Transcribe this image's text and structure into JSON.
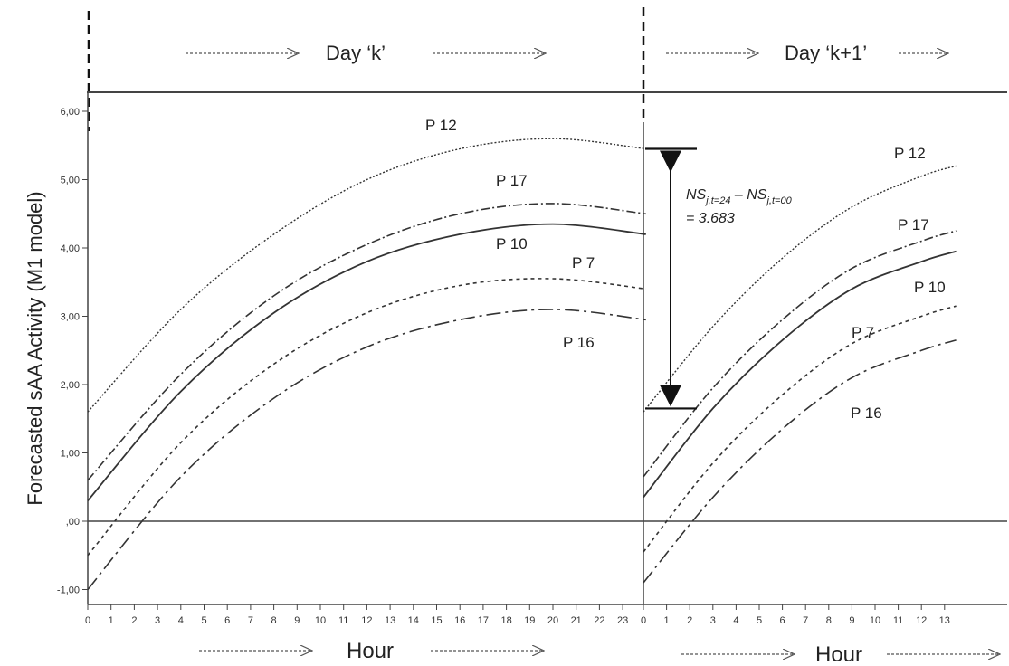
{
  "chart_data": {
    "type": "line",
    "title": "",
    "ylabel": "Forecasted sAA Activity (M1 model)",
    "ylim": [
      -1.2,
      6.2
    ],
    "y_ticks": [
      "6,00",
      "5,00",
      "4,00",
      "3,00",
      "2,00",
      "1,00",
      ",00",
      "-1,00"
    ],
    "grid": false,
    "panels": [
      {
        "name": "Day ‘k’",
        "xlabel": "Hour",
        "xlim": [
          0,
          24
        ],
        "x_ticks": [
          "0",
          "1",
          "2",
          "3",
          "4",
          "5",
          "6",
          "7",
          "8",
          "9",
          "10",
          "11",
          "12",
          "13",
          "14",
          "15",
          "16",
          "17",
          "18",
          "19",
          "20",
          "21",
          "22",
          "23"
        ],
        "series": [
          {
            "name": "P 12",
            "style": "dotted",
            "x": [
              0,
              4,
              8,
              12,
              16,
              20,
              24
            ],
            "y": [
              1.6,
              3.1,
              4.2,
              5.0,
              5.45,
              5.6,
              5.45
            ]
          },
          {
            "name": "P 17",
            "style": "dashdot",
            "x": [
              0,
              4,
              8,
              12,
              16,
              20,
              24
            ],
            "y": [
              0.6,
              2.15,
              3.3,
              4.05,
              4.5,
              4.65,
              4.5
            ]
          },
          {
            "name": "P 10",
            "style": "solid",
            "x": [
              0,
              4,
              8,
              12,
              16,
              20,
              24
            ],
            "y": [
              0.3,
              1.9,
              3.05,
              3.8,
              4.2,
              4.35,
              4.2
            ]
          },
          {
            "name": "P 7",
            "style": "dashed-short",
            "x": [
              0,
              4,
              8,
              12,
              16,
              20,
              24
            ],
            "y": [
              -0.5,
              1.15,
              2.3,
              3.05,
              3.45,
              3.55,
              3.4
            ]
          },
          {
            "name": "P 16",
            "style": "dashed-long",
            "x": [
              0,
              4,
              8,
              12,
              16,
              20,
              24
            ],
            "y": [
              -1.0,
              0.65,
              1.8,
              2.55,
              2.95,
              3.1,
              2.95
            ]
          }
        ]
      },
      {
        "name": "Day ‘k+1’",
        "xlabel": "Hour",
        "xlim": [
          0,
          13.5
        ],
        "x_ticks": [
          "0",
          "1",
          "2",
          "3",
          "4",
          "5",
          "6",
          "7",
          "8",
          "9",
          "10",
          "11",
          "12",
          "13"
        ],
        "series": [
          {
            "name": "P 12",
            "style": "dotted",
            "x": [
              0,
              3,
              6,
              9,
              12,
              13.5
            ],
            "y": [
              1.6,
              2.85,
              3.85,
              4.6,
              5.05,
              5.2
            ]
          },
          {
            "name": "P 17",
            "style": "dashdot",
            "x": [
              0,
              3,
              6,
              9,
              12,
              13.5
            ],
            "y": [
              0.65,
              1.95,
              2.95,
              3.7,
              4.1,
              4.25
            ]
          },
          {
            "name": "P 10",
            "style": "solid",
            "x": [
              0,
              3,
              6,
              9,
              12,
              13.5
            ],
            "y": [
              0.35,
              1.65,
              2.65,
              3.4,
              3.8,
              3.95
            ]
          },
          {
            "name": "P 7",
            "style": "dashed-short",
            "x": [
              0,
              3,
              6,
              9,
              12,
              13.5
            ],
            "y": [
              -0.45,
              0.85,
              1.85,
              2.6,
              3.0,
              3.15
            ]
          },
          {
            "name": "P 16",
            "style": "dashed-long",
            "x": [
              0,
              3,
              6,
              9,
              12,
              13.5
            ],
            "y": [
              -0.9,
              0.35,
              1.35,
              2.1,
              2.5,
              2.65
            ]
          }
        ]
      }
    ],
    "annotation": {
      "base_1": "NS",
      "sub_1": "j,t=24",
      "minus": " – ",
      "base_2": "NS",
      "sub_2": "j,t=00",
      "value_text": "= 3.683",
      "y_top": 5.45,
      "y_bottom": 1.65
    }
  }
}
